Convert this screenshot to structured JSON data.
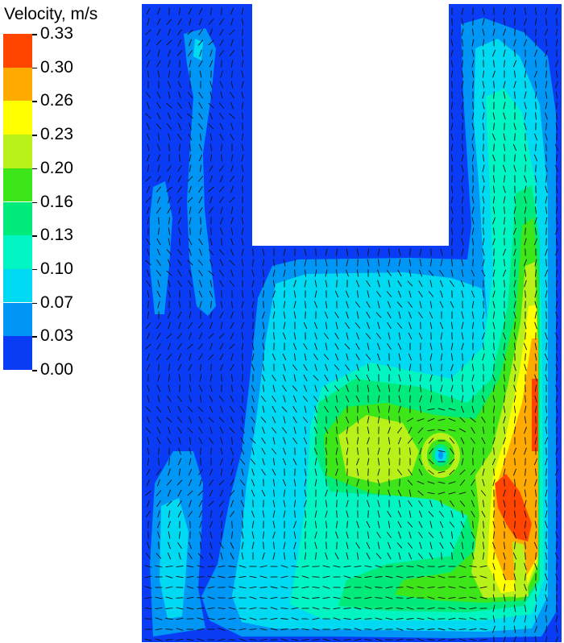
{
  "chart_data": {
    "type": "heatmap",
    "title": "Velocity, m/s",
    "legend": {
      "placement": "top-left",
      "ticks": [
        "0.33",
        "0.30",
        "0.26",
        "0.23",
        "0.20",
        "0.16",
        "0.13",
        "0.10",
        "0.07",
        "0.03",
        "0.00"
      ],
      "levels": [
        {
          "range": [
            0.0,
            0.03
          ],
          "color": "#0a3cf5"
        },
        {
          "range": [
            0.03,
            0.07
          ],
          "color": "#0096f5"
        },
        {
          "range": [
            0.07,
            0.1
          ],
          "color": "#00d9f2"
        },
        {
          "range": [
            0.1,
            0.13
          ],
          "color": "#00f5c3"
        },
        {
          "range": [
            0.13,
            0.16
          ],
          "color": "#00eb7a"
        },
        {
          "range": [
            0.16,
            0.2
          ],
          "color": "#3de619"
        },
        {
          "range": [
            0.2,
            0.23
          ],
          "color": "#b8f01a"
        },
        {
          "range": [
            0.23,
            0.26
          ],
          "color": "#ffff00"
        },
        {
          "range": [
            0.26,
            0.3
          ],
          "color": "#ffaa00"
        },
        {
          "range": [
            0.3,
            0.33
          ],
          "color": "#ff4500"
        }
      ]
    },
    "vectors": "black velocity arrows overlaid on the flow domain",
    "max_region": "right-side upward jet, 0.30 to 0.33 m/s",
    "vortex": "recirculation zone in lower centre of basin"
  }
}
